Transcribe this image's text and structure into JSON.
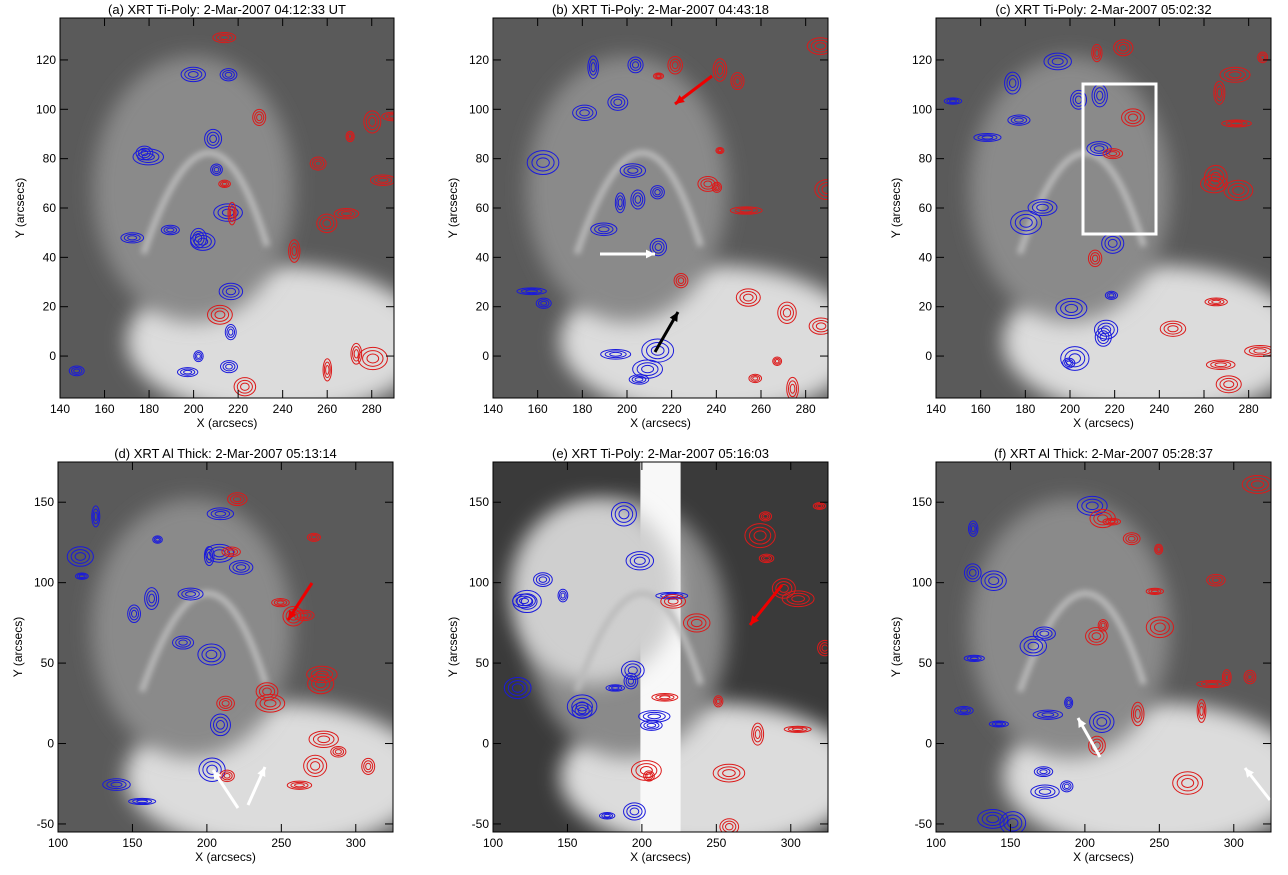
{
  "chart_data": [
    {
      "type": "image",
      "title": "(a) XRT Ti-Poly:  2-Mar-2007 04:12:33 UT",
      "x_label": "X (arcsecs)",
      "y_label": "Y (arcsecs)",
      "xlim": [
        140,
        290
      ],
      "ylim": [
        -17,
        137
      ],
      "xticks": [
        140,
        160,
        180,
        200,
        220,
        240,
        260,
        280
      ],
      "yticks": [
        0,
        20,
        40,
        60,
        80,
        100,
        120
      ]
    },
    {
      "type": "image",
      "title": "(b) XRT Ti-Poly:  2-Mar-2007 04:43:18",
      "x_label": "X (arcsecs)",
      "y_label": "Y (arcsecs)",
      "xlim": [
        140,
        290
      ],
      "ylim": [
        -17,
        137
      ],
      "xticks": [
        140,
        160,
        180,
        200,
        220,
        240,
        260,
        280
      ],
      "yticks": [
        0,
        20,
        40,
        60,
        80,
        100,
        120
      ]
    },
    {
      "type": "image",
      "title": "(c) XRT Ti-Poly:  2-Mar-2007 05:02:32",
      "x_label": "X (arcsecs)",
      "y_label": "Y (arcsecs)",
      "xlim": [
        140,
        290
      ],
      "ylim": [
        -17,
        137
      ],
      "xticks": [
        140,
        160,
        180,
        200,
        220,
        240,
        260,
        280
      ],
      "yticks": [
        0,
        20,
        40,
        60,
        80,
        100,
        120
      ]
    },
    {
      "type": "image",
      "title": "(d) XRT Al Thick:  2-Mar-2007 05:13:14",
      "x_label": "X (arcsecs)",
      "y_label": "Y (arcsecs)",
      "xlim": [
        100,
        325
      ],
      "ylim": [
        -55,
        175
      ],
      "xticks": [
        100,
        150,
        200,
        250,
        300
      ],
      "yticks": [
        -50,
        0,
        50,
        100,
        150
      ]
    },
    {
      "type": "image",
      "title": "(e) XRT Ti-Poly:  2-Mar-2007 05:16:03",
      "x_label": "X (arcsecs)",
      "y_label": "Y (arcsecs)",
      "xlim": [
        100,
        325
      ],
      "ylim": [
        -55,
        175
      ],
      "xticks": [
        100,
        150,
        200,
        250,
        300
      ],
      "yticks": [
        -50,
        0,
        50,
        100,
        150
      ]
    },
    {
      "type": "image",
      "title": "(f) XRT Al Thick:  2-Mar-2007 05:28:37",
      "x_label": "X (arcsecs)",
      "y_label": "Y (arcsecs)",
      "xlim": [
        100,
        325
      ],
      "ylim": [
        -55,
        175
      ],
      "xticks": [
        100,
        150,
        200,
        250,
        300
      ],
      "yticks": [
        -50,
        0,
        50,
        100,
        150
      ]
    }
  ]
}
